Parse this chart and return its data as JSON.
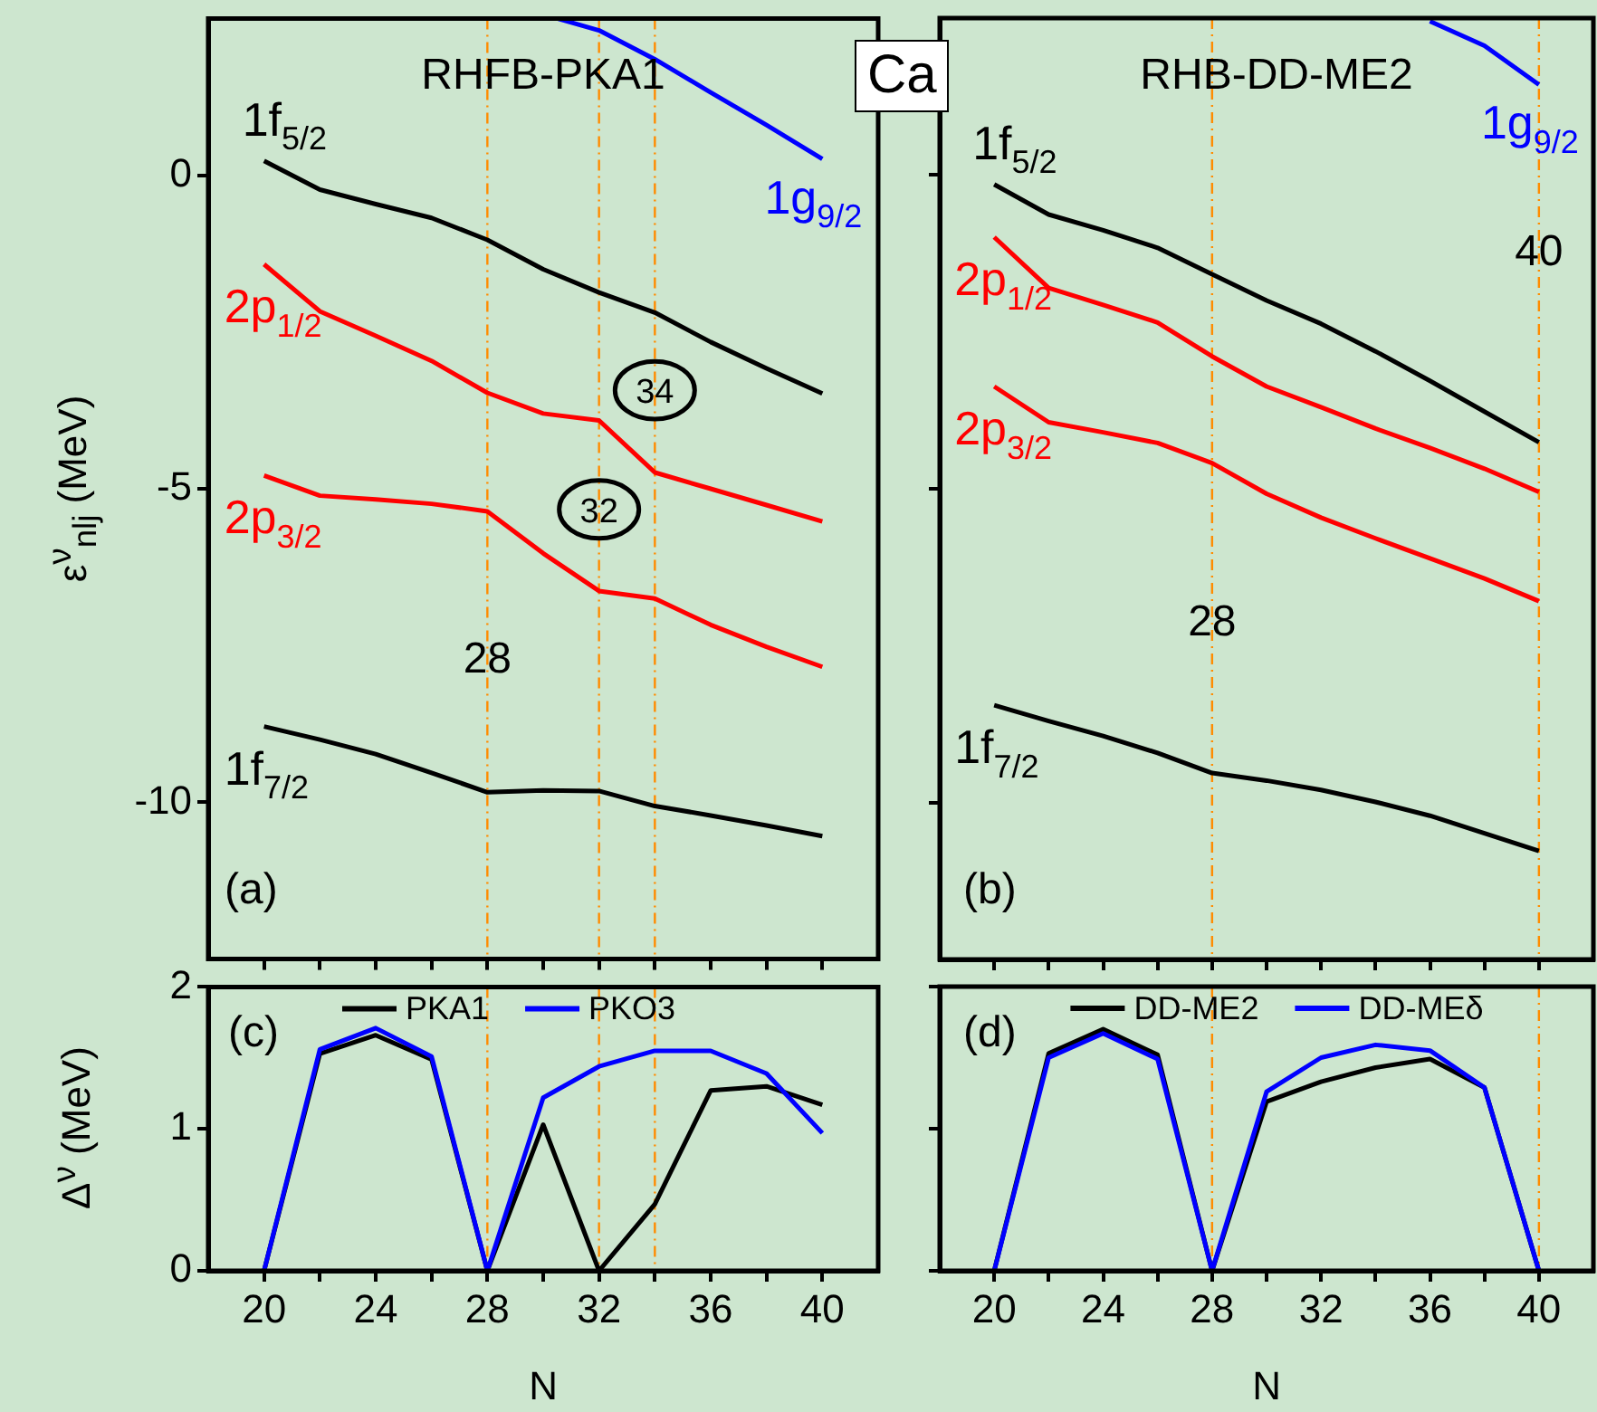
{
  "chart_data": [
    {
      "type": "line",
      "annotations": [
        "RHFB-PKA1",
        "Ca",
        "(a)",
        {
          "text": "28",
          "x": 28,
          "y": -7.7
        },
        {
          "text": "32",
          "x": 32,
          "y": -5.3
        },
        {
          "text": "34",
          "x": 34,
          "y": -3.4
        }
      ],
      "ylabel": "ε$^{ν}$$_{nlj}$ (MeV)",
      "x": [
        20,
        22,
        24,
        26,
        28,
        30,
        32,
        34,
        36,
        38,
        40
      ],
      "series": [
        {
          "name": "1f$_{5/2}$",
          "color": "#000000",
          "values": [
            0.23,
            -0.23,
            -0.46,
            -0.68,
            -1.03,
            -1.5,
            -1.87,
            -2.19,
            -2.66,
            -3.08,
            -3.48
          ]
        },
        {
          "name": "2p$_{1/2}$",
          "color": "#ff0000",
          "values": [
            -1.42,
            -2.17,
            -2.56,
            -2.96,
            -3.47,
            -3.8,
            -3.91,
            -4.74,
            -5.0,
            -5.26,
            -5.52
          ]
        },
        {
          "name": "2p$_{3/2}$",
          "color": "#ff0000",
          "values": [
            -4.79,
            -5.11,
            -5.17,
            -5.24,
            -5.36,
            -6.03,
            -6.63,
            -6.75,
            -7.17,
            -7.52,
            -7.84
          ]
        },
        {
          "name": "1f$_{7/2}$",
          "color": "#000000",
          "values": [
            -8.79,
            -9.0,
            -9.23,
            -9.53,
            -9.84,
            -9.81,
            -9.82,
            -10.06,
            -10.21,
            -10.37,
            -10.54
          ]
        },
        {
          "name": "1g$_{9/2}$",
          "color": "#0000ff",
          "x": [
            30.5,
            32,
            34,
            36,
            38,
            40
          ],
          "values": [
            2.5,
            2.31,
            1.85,
            1.32,
            0.8,
            0.26
          ]
        }
      ],
      "xlim": [
        18,
        42
      ],
      "ylim": [
        -12.5,
        2.5
      ],
      "xticks": [
        20,
        22,
        24,
        26,
        28,
        30,
        32,
        34,
        36,
        38,
        40
      ],
      "yticks": [
        -10,
        -5,
        0
      ],
      "tick_labels": "y",
      "grid": false,
      "line_style": "solid",
      "ref_lines": [
        {
          "axis": "x",
          "value": 28,
          "color": "#ff8c00",
          "line_style": "dashed"
        },
        {
          "axis": "x",
          "value": 32,
          "color": "#ff8c00",
          "line_style": "dashed"
        },
        {
          "axis": "x",
          "value": 34,
          "color": "#ff8c00",
          "line_style": "dashed"
        }
      ]
    },
    {
      "type": "line",
      "annotations": [
        "RHB-DD-ME2",
        "(b)",
        {
          "text": "28",
          "x": 28,
          "y": -7.1
        },
        {
          "text": "40",
          "x": 40,
          "y": -1.2
        }
      ],
      "x": [
        20,
        22,
        24,
        26,
        28,
        30,
        32,
        34,
        36,
        38,
        40
      ],
      "series": [
        {
          "name": "1f$_{5/2}$",
          "color": "#000000",
          "values": [
            -0.15,
            -0.63,
            -0.88,
            -1.16,
            -1.58,
            -2.0,
            -2.37,
            -2.81,
            -3.28,
            -3.77,
            -4.26
          ]
        },
        {
          "name": "2p$_{1/2}$",
          "color": "#ff0000",
          "values": [
            -0.99,
            -1.8,
            -2.07,
            -2.35,
            -2.89,
            -3.37,
            -3.7,
            -4.04,
            -4.35,
            -4.68,
            -5.05
          ]
        },
        {
          "name": "2p$_{3/2}$",
          "color": "#ff0000",
          "values": [
            -3.37,
            -3.94,
            -4.1,
            -4.27,
            -4.59,
            -5.08,
            -5.46,
            -5.79,
            -6.11,
            -6.43,
            -6.79
          ]
        },
        {
          "name": "1f$_{7/2}$",
          "color": "#000000",
          "values": [
            -8.45,
            -8.7,
            -8.94,
            -9.21,
            -9.53,
            -9.65,
            -9.8,
            -9.99,
            -10.21,
            -10.49,
            -10.77
          ]
        },
        {
          "name": "1g$_{9/2}$",
          "color": "#0000ff",
          "x": [
            36,
            38,
            40
          ],
          "values": [
            2.45,
            2.06,
            1.44
          ]
        }
      ],
      "xlim": [
        18,
        42
      ],
      "ylim": [
        -12.5,
        2.5
      ],
      "xticks": [
        20,
        22,
        24,
        26,
        28,
        30,
        32,
        34,
        36,
        38,
        40
      ],
      "yticks": [
        -10,
        -5,
        0
      ],
      "tick_labels": false,
      "grid": false,
      "line_style": "solid",
      "ref_lines": [
        {
          "axis": "x",
          "value": 28,
          "color": "#ff8c00",
          "line_style": "dashed"
        },
        {
          "axis": "x",
          "value": 40,
          "color": "#ff8c00",
          "line_style": "dashed"
        }
      ]
    },
    {
      "type": "line",
      "annotations": [
        "(c)"
      ],
      "xlabel": "N",
      "ylabel": "Δ$^{ν}$ (MeV)",
      "x": [
        20,
        22,
        24,
        26,
        28,
        30,
        32,
        34,
        36,
        38,
        40
      ],
      "series": [
        {
          "name": "PKA1",
          "color": "#000000",
          "values": [
            0,
            1.53,
            1.66,
            1.49,
            0,
            1.03,
            0,
            0.47,
            1.27,
            1.3,
            1.17
          ]
        },
        {
          "name": "PKO3",
          "color": "#0000ff",
          "values": [
            0,
            1.56,
            1.71,
            1.51,
            0,
            1.22,
            1.44,
            1.55,
            1.55,
            1.39,
            0.97
          ]
        }
      ],
      "xlim": [
        18,
        42
      ],
      "ylim": [
        0,
        2
      ],
      "xticks": [
        20,
        {
          "value": 22,
          "label": null
        },
        24,
        {
          "value": 26,
          "label": null
        },
        28,
        {
          "value": 30,
          "label": null
        },
        32,
        {
          "value": 34,
          "label": null
        },
        36,
        {
          "value": 38,
          "label": null
        },
        40
      ],
      "yticks": [
        0,
        1,
        2
      ],
      "grid": false,
      "legend": "top",
      "line_style": "solid",
      "ref_lines": [
        {
          "axis": "x",
          "value": 28,
          "color": "#ff8c00",
          "line_style": "dashed"
        },
        {
          "axis": "x",
          "value": 32,
          "color": "#ff8c00",
          "line_style": "dashed"
        },
        {
          "axis": "x",
          "value": 34,
          "color": "#ff8c00",
          "line_style": "dashed"
        }
      ]
    },
    {
      "type": "line",
      "annotations": [
        "(d)"
      ],
      "xlabel": "N",
      "x": [
        20,
        22,
        24,
        26,
        28,
        30,
        32,
        34,
        36,
        38,
        40
      ],
      "series": [
        {
          "name": "DD-ME2",
          "color": "#000000",
          "values": [
            0,
            1.53,
            1.7,
            1.52,
            0,
            1.19,
            1.33,
            1.43,
            1.49,
            1.29,
            0
          ]
        },
        {
          "name": "DD-MEδ",
          "color": "#0000ff",
          "values": [
            0,
            1.5,
            1.67,
            1.49,
            0,
            1.26,
            1.5,
            1.59,
            1.55,
            1.29,
            0
          ]
        }
      ],
      "xlim": [
        18,
        42
      ],
      "ylim": [
        0,
        2
      ],
      "xticks": [
        20,
        {
          "value": 22,
          "label": null
        },
        24,
        {
          "value": 26,
          "label": null
        },
        28,
        {
          "value": 30,
          "label": null
        },
        32,
        {
          "value": 34,
          "label": null
        },
        36,
        {
          "value": 38,
          "label": null
        },
        40
      ],
      "yticks": [
        0,
        1,
        2
      ],
      "tick_labels": "x",
      "grid": false,
      "legend": "top",
      "line_style": "solid",
      "ref_lines": [
        {
          "axis": "x",
          "value": 28,
          "color": "#ff8c00",
          "line_style": "dashed"
        },
        {
          "axis": "x",
          "value": 40,
          "color": "#ff8c00",
          "line_style": "dashed"
        }
      ]
    }
  ]
}
